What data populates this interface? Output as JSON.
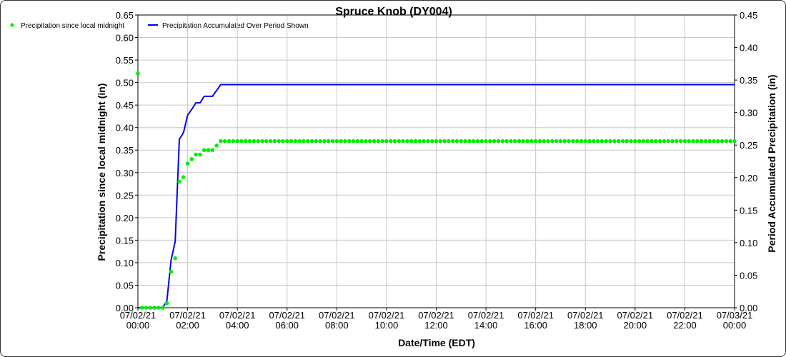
{
  "chart_data": {
    "type": "line",
    "title": "Spruce Knob (DY004)",
    "xlabel": "Date/Time (EDT)",
    "ylabel": "Precipitation since local midnight (in)",
    "y2label": "Period Accumulated Precipitation (in)",
    "ylim": [
      0,
      0.65
    ],
    "y2lim": [
      0,
      0.45
    ],
    "grid": true,
    "legend": "top-left",
    "x_ticks": [
      "07/02/21\n00:00",
      "07/02/21\n02:00",
      "07/02/21\n04:00",
      "07/02/21\n06:00",
      "07/02/21\n08:00",
      "07/02/21\n10:00",
      "07/02/21\n12:00",
      "07/02/21\n14:00",
      "07/02/21\n16:00",
      "07/02/21\n18:00",
      "07/02/21\n20:00",
      "07/02/21\n22:00",
      "07/03/21\n00:00"
    ],
    "x_range": [
      "07/02/21 00:00",
      "07/03/21 00:00"
    ],
    "x_interval": "10 min",
    "series": [
      {
        "name": "Precipitation since local midnight",
        "style": "points",
        "axis": "left",
        "color": "#00ee00",
        "values": [
          0.52,
          0,
          0,
          0,
          0,
          0,
          0,
          0.01,
          0.08,
          0.11,
          0.28,
          0.29,
          0.32,
          0.33,
          0.34,
          0.34,
          0.35,
          0.35,
          0.35,
          0.36,
          0.37,
          0.37,
          0.37,
          0.37,
          0.37,
          0.37,
          0.37,
          0.37,
          0.37,
          0.37,
          0.37,
          0.37,
          0.37,
          0.37,
          0.37,
          0.37,
          0.37,
          0.37,
          0.37,
          0.37,
          0.37,
          0.37,
          0.37,
          0.37,
          0.37,
          0.37,
          0.37,
          0.37,
          0.37,
          0.37,
          0.37,
          0.37,
          0.37,
          0.37,
          0.37,
          0.37,
          0.37,
          0.37,
          0.37,
          0.37,
          0.37,
          0.37,
          0.37,
          0.37,
          0.37,
          0.37,
          0.37,
          0.37,
          0.37,
          0.37,
          0.37,
          0.37,
          0.37,
          0.37,
          0.37,
          0.37,
          0.37,
          0.37,
          0.37,
          0.37,
          0.37,
          0.37,
          0.37,
          0.37,
          0.37,
          0.37,
          0.37,
          0.37,
          0.37,
          0.37,
          0.37,
          0.37,
          0.37,
          0.37,
          0.37,
          0.37,
          0.37,
          0.37,
          0.37,
          0.37,
          0.37,
          0.37,
          0.37,
          0.37,
          0.37,
          0.37,
          0.37,
          0.37,
          0.37,
          0.37,
          0.37,
          0.37,
          0.37,
          0.37,
          0.37,
          0.37,
          0.37,
          0.37,
          0.37,
          0.37,
          0.37,
          0.37,
          0.37,
          0.37,
          0.37,
          0.37,
          0.37,
          0.37,
          0.37,
          0.37,
          0.37,
          0.37,
          0.37,
          0.37,
          0.37,
          0.37,
          0.37,
          0.37,
          0.37,
          0.37,
          0.37,
          0.37,
          0.37,
          0.37,
          0.37
        ]
      },
      {
        "name": "Precipitation Accumulated Over Period Shown",
        "style": "line",
        "axis": "right",
        "color": "#0000ee",
        "values": [
          0,
          0,
          0,
          0,
          0,
          0,
          0,
          0.011,
          0.073,
          0.102,
          0.259,
          0.269,
          0.296,
          0.305,
          0.315,
          0.315,
          0.325,
          0.325,
          0.325,
          0.334,
          0.343,
          0.343,
          0.343,
          0.343,
          0.343,
          0.343,
          0.343,
          0.343,
          0.343,
          0.343,
          0.343,
          0.343,
          0.343,
          0.343,
          0.343,
          0.343,
          0.343,
          0.343,
          0.343,
          0.343,
          0.343,
          0.343,
          0.343,
          0.343,
          0.343,
          0.343,
          0.343,
          0.343,
          0.343,
          0.343,
          0.343,
          0.343,
          0.343,
          0.343,
          0.343,
          0.343,
          0.343,
          0.343,
          0.343,
          0.343,
          0.343,
          0.343,
          0.343,
          0.343,
          0.343,
          0.343,
          0.343,
          0.343,
          0.343,
          0.343,
          0.343,
          0.343,
          0.343,
          0.343,
          0.343,
          0.343,
          0.343,
          0.343,
          0.343,
          0.343,
          0.343,
          0.343,
          0.343,
          0.343,
          0.343,
          0.343,
          0.343,
          0.343,
          0.343,
          0.343,
          0.343,
          0.343,
          0.343,
          0.343,
          0.343,
          0.343,
          0.343,
          0.343,
          0.343,
          0.343,
          0.343,
          0.343,
          0.343,
          0.343,
          0.343,
          0.343,
          0.343,
          0.343,
          0.343,
          0.343,
          0.343,
          0.343,
          0.343,
          0.343,
          0.343,
          0.343,
          0.343,
          0.343,
          0.343,
          0.343,
          0.343,
          0.343,
          0.343,
          0.343,
          0.343,
          0.343,
          0.343,
          0.343,
          0.343,
          0.343,
          0.343,
          0.343,
          0.343,
          0.343,
          0.343,
          0.343,
          0.343,
          0.343,
          0.343,
          0.343,
          0.343,
          0.343,
          0.343,
          0.343,
          0.343
        ]
      }
    ]
  }
}
